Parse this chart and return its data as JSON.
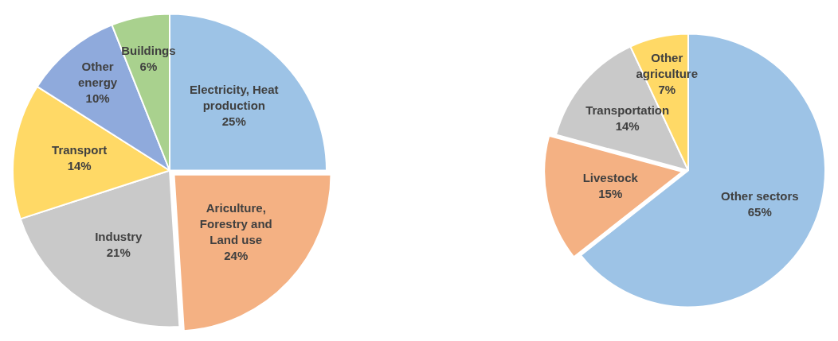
{
  "chart_data": [
    {
      "type": "pie",
      "categories": [
        "Electricity, Heat production",
        "Ariculture, Forestry and Land use",
        "Industry",
        "Transport",
        "Other energy",
        "Buildings"
      ],
      "values": [
        25,
        24,
        21,
        14,
        10,
        6
      ],
      "colors": [
        "#9dc3e6",
        "#f4b183",
        "#c9c9c9",
        "#ffd966",
        "#8faadc",
        "#a9d18e"
      ],
      "value_labels": [
        "25%",
        "24%",
        "21%",
        "14%",
        "10%",
        "6%"
      ]
    },
    {
      "type": "pie",
      "categories": [
        "Other sectors",
        "Livestock",
        "Transportation",
        "Other agriculture"
      ],
      "values": [
        65,
        15,
        14,
        7
      ],
      "colors": [
        "#9dc3e6",
        "#f4b183",
        "#c9c9c9",
        "#ffd966"
      ],
      "value_labels": [
        "65%",
        "15%",
        "14%",
        "7%"
      ]
    }
  ]
}
